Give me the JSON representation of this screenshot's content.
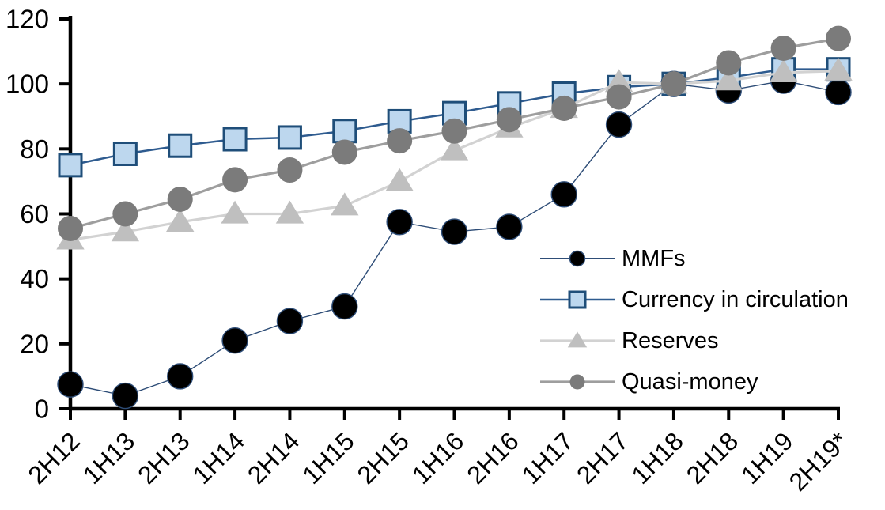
{
  "chart_data": {
    "type": "line",
    "categories": [
      "2H12",
      "1H13",
      "2H13",
      "1H14",
      "2H14",
      "1H15",
      "2H15",
      "1H16",
      "2H16",
      "1H17",
      "2H17",
      "1H18",
      "2H18",
      "1H19",
      "2H19*"
    ],
    "series": [
      {
        "name": "MMFs",
        "marker": "circle",
        "marker_fill": "#000000",
        "marker_stroke": "#2e4d77",
        "marker_stroke_width": 1.4,
        "line_color": "#2e4d77",
        "line_width": 1.4,
        "values": [
          7.5,
          4,
          10,
          21,
          27,
          31.5,
          57.5,
          54.5,
          56,
          66,
          87.5,
          100,
          98,
          101,
          97.5
        ]
      },
      {
        "name": "Currency in circulation",
        "marker": "square",
        "marker_fill": "#bdd7ee",
        "marker_stroke": "#1f4e79",
        "marker_stroke_width": 3,
        "line_color": "#2e5b8f",
        "line_width": 2.5,
        "values": [
          75,
          78.5,
          81,
          83,
          83.5,
          85.5,
          88.5,
          91,
          94,
          97,
          99,
          100,
          102,
          104.5,
          104.5
        ]
      },
      {
        "name": "Reserves",
        "marker": "triangle",
        "marker_fill": "#bfbfbf",
        "marker_stroke": "#bfbfbf",
        "marker_stroke_width": 0,
        "line_color": "#d2d2d2",
        "line_width": 3.2,
        "values": [
          52,
          54.5,
          57.5,
          60,
          60,
          62.5,
          70,
          79.5,
          86.5,
          92.5,
          100.5,
          100,
          101,
          103.5,
          104
        ]
      },
      {
        "name": "Quasi-money",
        "marker": "circle",
        "marker_fill": "#7b7b7b",
        "marker_stroke": "#7b7b7b",
        "marker_stroke_width": 0,
        "line_color": "#9e9e9e",
        "line_width": 3.2,
        "values": [
          55.5,
          60,
          64.5,
          70.5,
          73.5,
          79,
          82.5,
          85.5,
          89,
          92.5,
          96,
          100,
          106.5,
          111,
          114
        ]
      }
    ],
    "title": "",
    "xlabel": "",
    "ylabel": "",
    "ylim": [
      0,
      120
    ],
    "yticks": [
      0,
      20,
      40,
      60,
      80,
      100,
      120
    ],
    "grid": false,
    "axis_color": "#000000",
    "legend_position": "inside-right",
    "legend_labels": [
      "MMFs",
      "Currency in circulation",
      "Reserves",
      "Quasi-money"
    ]
  }
}
